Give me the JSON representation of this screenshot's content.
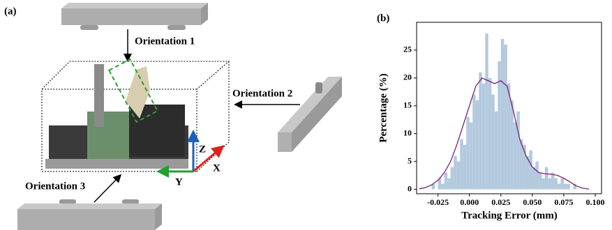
{
  "diagram": {
    "panel_label": "(a)",
    "orientation_1": "Orientation 1",
    "orientation_2": "Orientation 2",
    "orientation_3": "Orientation 3",
    "axis_x": "X",
    "axis_y": "Y",
    "axis_z": "Z"
  },
  "chart_data": {
    "type": "histogram",
    "panel_label": "(b)",
    "x_label": "Tracking Error (mm)",
    "y_label": "Percentage (%)",
    "color": "#b3c9de",
    "bins": [
      -0.0325,
      -0.03,
      -0.0275,
      -0.025,
      -0.0225,
      -0.02,
      -0.0175,
      -0.015,
      -0.0125,
      -0.01,
      -0.0075,
      -0.005,
      -0.0025,
      0,
      0.0025,
      0.005,
      0.0075,
      0.01,
      0.0125,
      0.015,
      0.0175,
      0.02,
      0.0225,
      0.025,
      0.0275,
      0.03,
      0.0325,
      0.035,
      0.0375,
      0.04,
      0.0425,
      0.045,
      0.0475,
      0.05,
      0.0525,
      0.055,
      0.0575,
      0.06,
      0.0625,
      0.065,
      0.0675,
      0.07,
      0.0725,
      0.075,
      0.0775,
      0.08,
      0.0825,
      0.085,
      0.0875
    ],
    "values": [
      0,
      1,
      0,
      2,
      1,
      3,
      2,
      4,
      6,
      5,
      9,
      8,
      13,
      12,
      17,
      16,
      21,
      19,
      28,
      20,
      17,
      14,
      23,
      27,
      26,
      19,
      16,
      12,
      14,
      9,
      8,
      6,
      7,
      4,
      5,
      3,
      2,
      4,
      2,
      3,
      2,
      1,
      2,
      1,
      1,
      0,
      1,
      0
    ],
    "kde": {
      "color": "#7b1f7b",
      "x": [
        -0.04,
        -0.035,
        -0.03,
        -0.025,
        -0.02,
        -0.015,
        -0.01,
        -0.005,
        0,
        0.005,
        0.01,
        0.015,
        0.02,
        0.025,
        0.03,
        0.035,
        0.04,
        0.045,
        0.05,
        0.055,
        0.06,
        0.065,
        0.07,
        0.075,
        0.08,
        0.085,
        0.09,
        0.095
      ],
      "values": [
        0.1,
        0.3,
        0.8,
        1.6,
        3,
        5,
        8,
        11.5,
        15,
        18.5,
        20,
        19.5,
        19,
        19.5,
        18.5,
        14,
        9,
        6,
        4,
        3,
        2.8,
        2.7,
        2.5,
        2,
        1.3,
        0.6,
        0.2,
        0.05
      ]
    },
    "xlim": [
      -0.042,
      0.105
    ],
    "ylim": [
      -0.8,
      30
    ],
    "xticks": [
      {
        "value": -0.025,
        "label": "-0.025"
      },
      {
        "value": 0,
        "label": "0.000"
      },
      {
        "value": 0.025,
        "label": "0.025"
      },
      {
        "value": 0.05,
        "label": "0.050"
      },
      {
        "value": 0.075,
        "label": "0.075"
      },
      {
        "value": 0.1,
        "label": "0.100"
      }
    ],
    "yticks": [
      0,
      5,
      10,
      15,
      20,
      25
    ]
  }
}
